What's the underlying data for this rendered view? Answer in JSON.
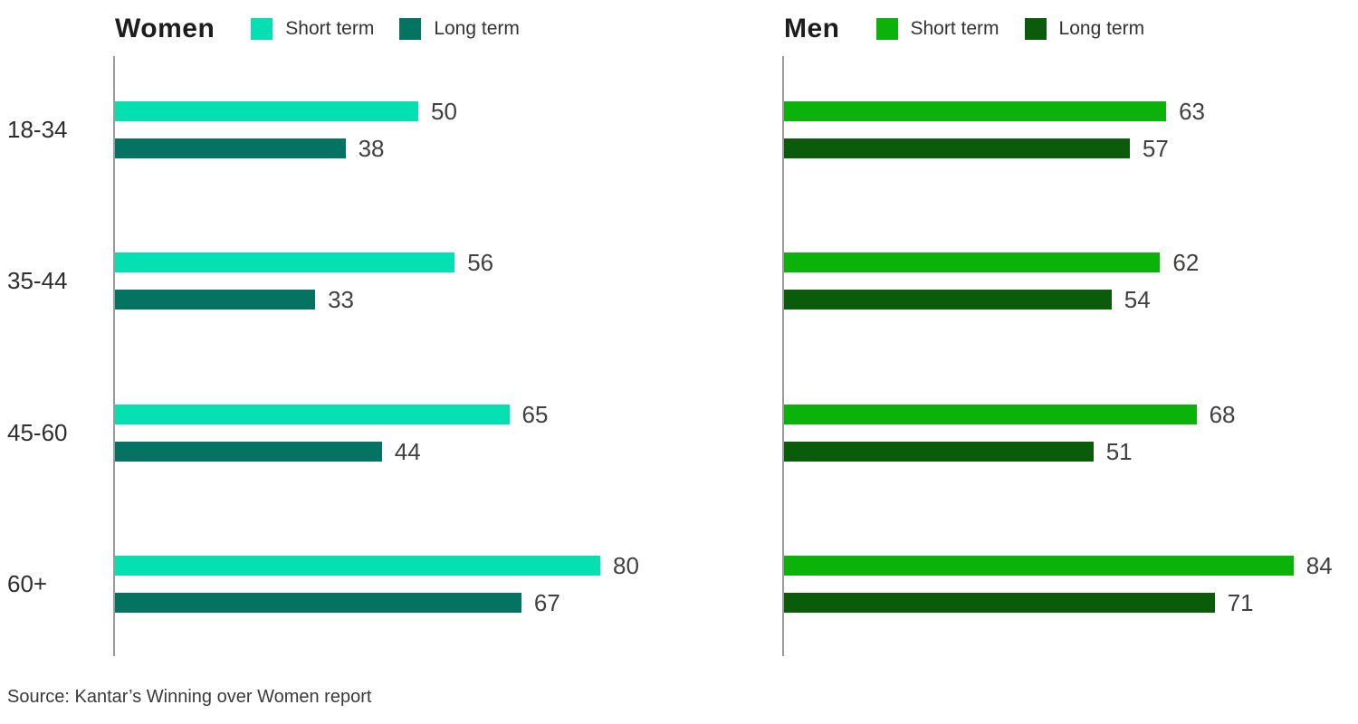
{
  "source_note": "Source: Kantar’s Winning over Women report",
  "colors": {
    "women_short": "#04E0B2",
    "women_long": "#047361",
    "men_short": "#0AB20A",
    "men_long": "#0A5C0A",
    "axis": "#9a9a9a",
    "title_text": "#1d1d1d",
    "label_text": "#2e2e2e",
    "value_text": "#404040"
  },
  "chart_data": [
    {
      "id": "women",
      "type": "bar",
      "orientation": "horizontal",
      "title": "Women",
      "categories": [
        "18-34",
        "35-44",
        "45-60",
        "60+"
      ],
      "series": [
        {
          "name": "Short term",
          "color_key": "women_short",
          "values": [
            50,
            56,
            65,
            80
          ]
        },
        {
          "name": "Long term",
          "color_key": "women_long",
          "values": [
            38,
            33,
            44,
            67
          ]
        }
      ],
      "xlim": [
        0,
        100
      ],
      "grid": false,
      "legend_position": "top",
      "value_labels": true
    },
    {
      "id": "men",
      "type": "bar",
      "orientation": "horizontal",
      "title": "Men",
      "categories": [
        "18-34",
        "35-44",
        "45-60",
        "60+"
      ],
      "series": [
        {
          "name": "Short term",
          "color_key": "men_short",
          "values": [
            63,
            62,
            68,
            84
          ]
        },
        {
          "name": "Long term",
          "color_key": "men_long",
          "values": [
            57,
            54,
            51,
            71
          ]
        }
      ],
      "xlim": [
        0,
        100
      ],
      "grid": false,
      "legend_position": "top",
      "value_labels": true
    }
  ]
}
